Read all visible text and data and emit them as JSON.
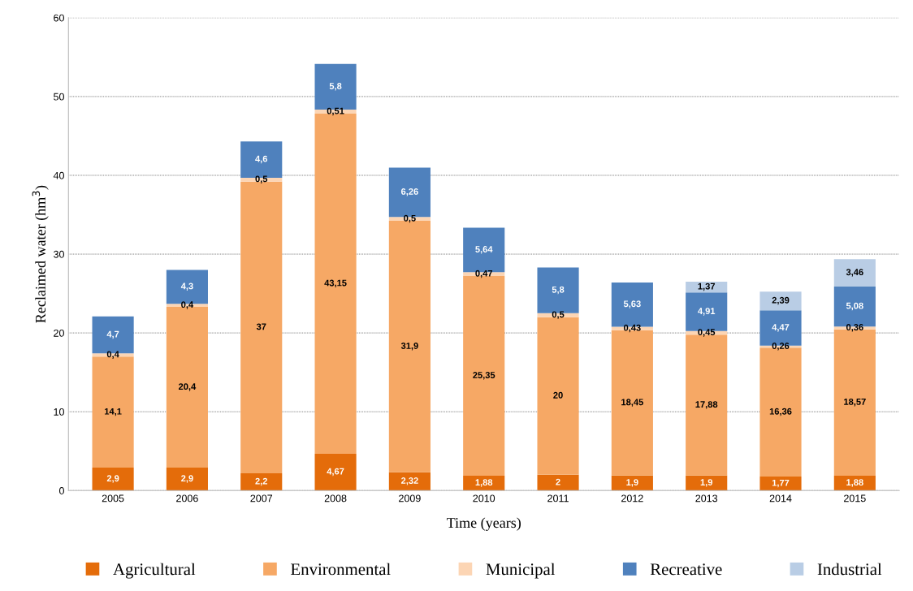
{
  "chart_data": {
    "type": "bar",
    "stacked": true,
    "xlabel": "Time (years)",
    "ylabel": "Reclaimed water (hm$^{3}$)",
    "categories": [
      "2005",
      "2006",
      "2007",
      "2008",
      "2009",
      "2010",
      "2011",
      "2012",
      "2013",
      "2014",
      "2015"
    ],
    "ylim": [
      0,
      60
    ],
    "yticks": [
      0,
      10,
      20,
      30,
      40,
      50,
      60
    ],
    "grid": "y",
    "legend": "bottom",
    "series": [
      {
        "name": "Agricultural",
        "color": "#e46c0a",
        "values": [
          2.9,
          2.9,
          2.2,
          4.67,
          2.32,
          1.88,
          2,
          1.9,
          1.9,
          1.77,
          1.88
        ],
        "value_labels": [
          "2,9",
          "2,9",
          "2,2",
          "4,67",
          "2,32",
          "1,88",
          "2",
          "1,9",
          "1,9",
          "1,77",
          "1,88"
        ]
      },
      {
        "name": "Environmental",
        "color": "#f6a865",
        "values": [
          14.1,
          20.4,
          37,
          43.15,
          31.9,
          25.35,
          20,
          18.45,
          17.88,
          16.36,
          18.57
        ],
        "value_labels": [
          "14,1",
          "20,4",
          "37",
          "43,15",
          "31,9",
          "25,35",
          "20",
          "18,45",
          "17,88",
          "16,36",
          "18,57"
        ]
      },
      {
        "name": "Municipal",
        "color": "#fcd5b4",
        "values": [
          0.4,
          0.4,
          0.5,
          0.51,
          0.5,
          0.47,
          0.5,
          0.43,
          0.45,
          0.26,
          0.36
        ],
        "value_labels": [
          "0,4",
          "0,4",
          "0,5",
          "0,51",
          "0,5",
          "0,47",
          "0,5",
          "0,43",
          "0,45",
          "0,26",
          "0,36"
        ]
      },
      {
        "name": "Recreative",
        "color": "#4f81bd",
        "values": [
          4.7,
          4.3,
          4.6,
          5.8,
          6.26,
          5.64,
          5.8,
          5.63,
          4.91,
          4.47,
          5.08
        ],
        "value_labels": [
          "4,7",
          "4,3",
          "4,6",
          "5,8",
          "6,26",
          "5,64",
          "5,8",
          "5,63",
          "4,91",
          "4,47",
          "5,08"
        ]
      },
      {
        "name": "Industrial",
        "color": "#b9cde5",
        "values": [
          null,
          null,
          null,
          null,
          null,
          null,
          null,
          null,
          1.37,
          2.39,
          3.46
        ],
        "value_labels": [
          null,
          null,
          null,
          null,
          null,
          null,
          null,
          null,
          "1,37",
          "2,39",
          "3,46"
        ]
      }
    ]
  }
}
